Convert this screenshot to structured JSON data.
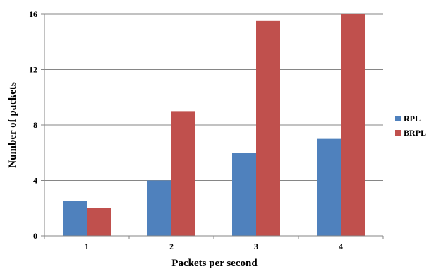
{
  "chart_data": {
    "type": "bar",
    "title": "",
    "xlabel": "Packets per second",
    "ylabel": "Number of packets",
    "categories": [
      "1",
      "2",
      "3",
      "4"
    ],
    "series": [
      {
        "name": "RPL",
        "values": [
          2.5,
          4,
          6,
          7
        ],
        "color": "#4F81BD"
      },
      {
        "name": "BRPL",
        "values": [
          2,
          9,
          15.5,
          16
        ],
        "color": "#C0504D"
      }
    ],
    "ylim": [
      0,
      16
    ],
    "yticks": [
      "0",
      "4",
      "8",
      "12",
      "16"
    ],
    "grid": true,
    "legend_position": "right"
  }
}
